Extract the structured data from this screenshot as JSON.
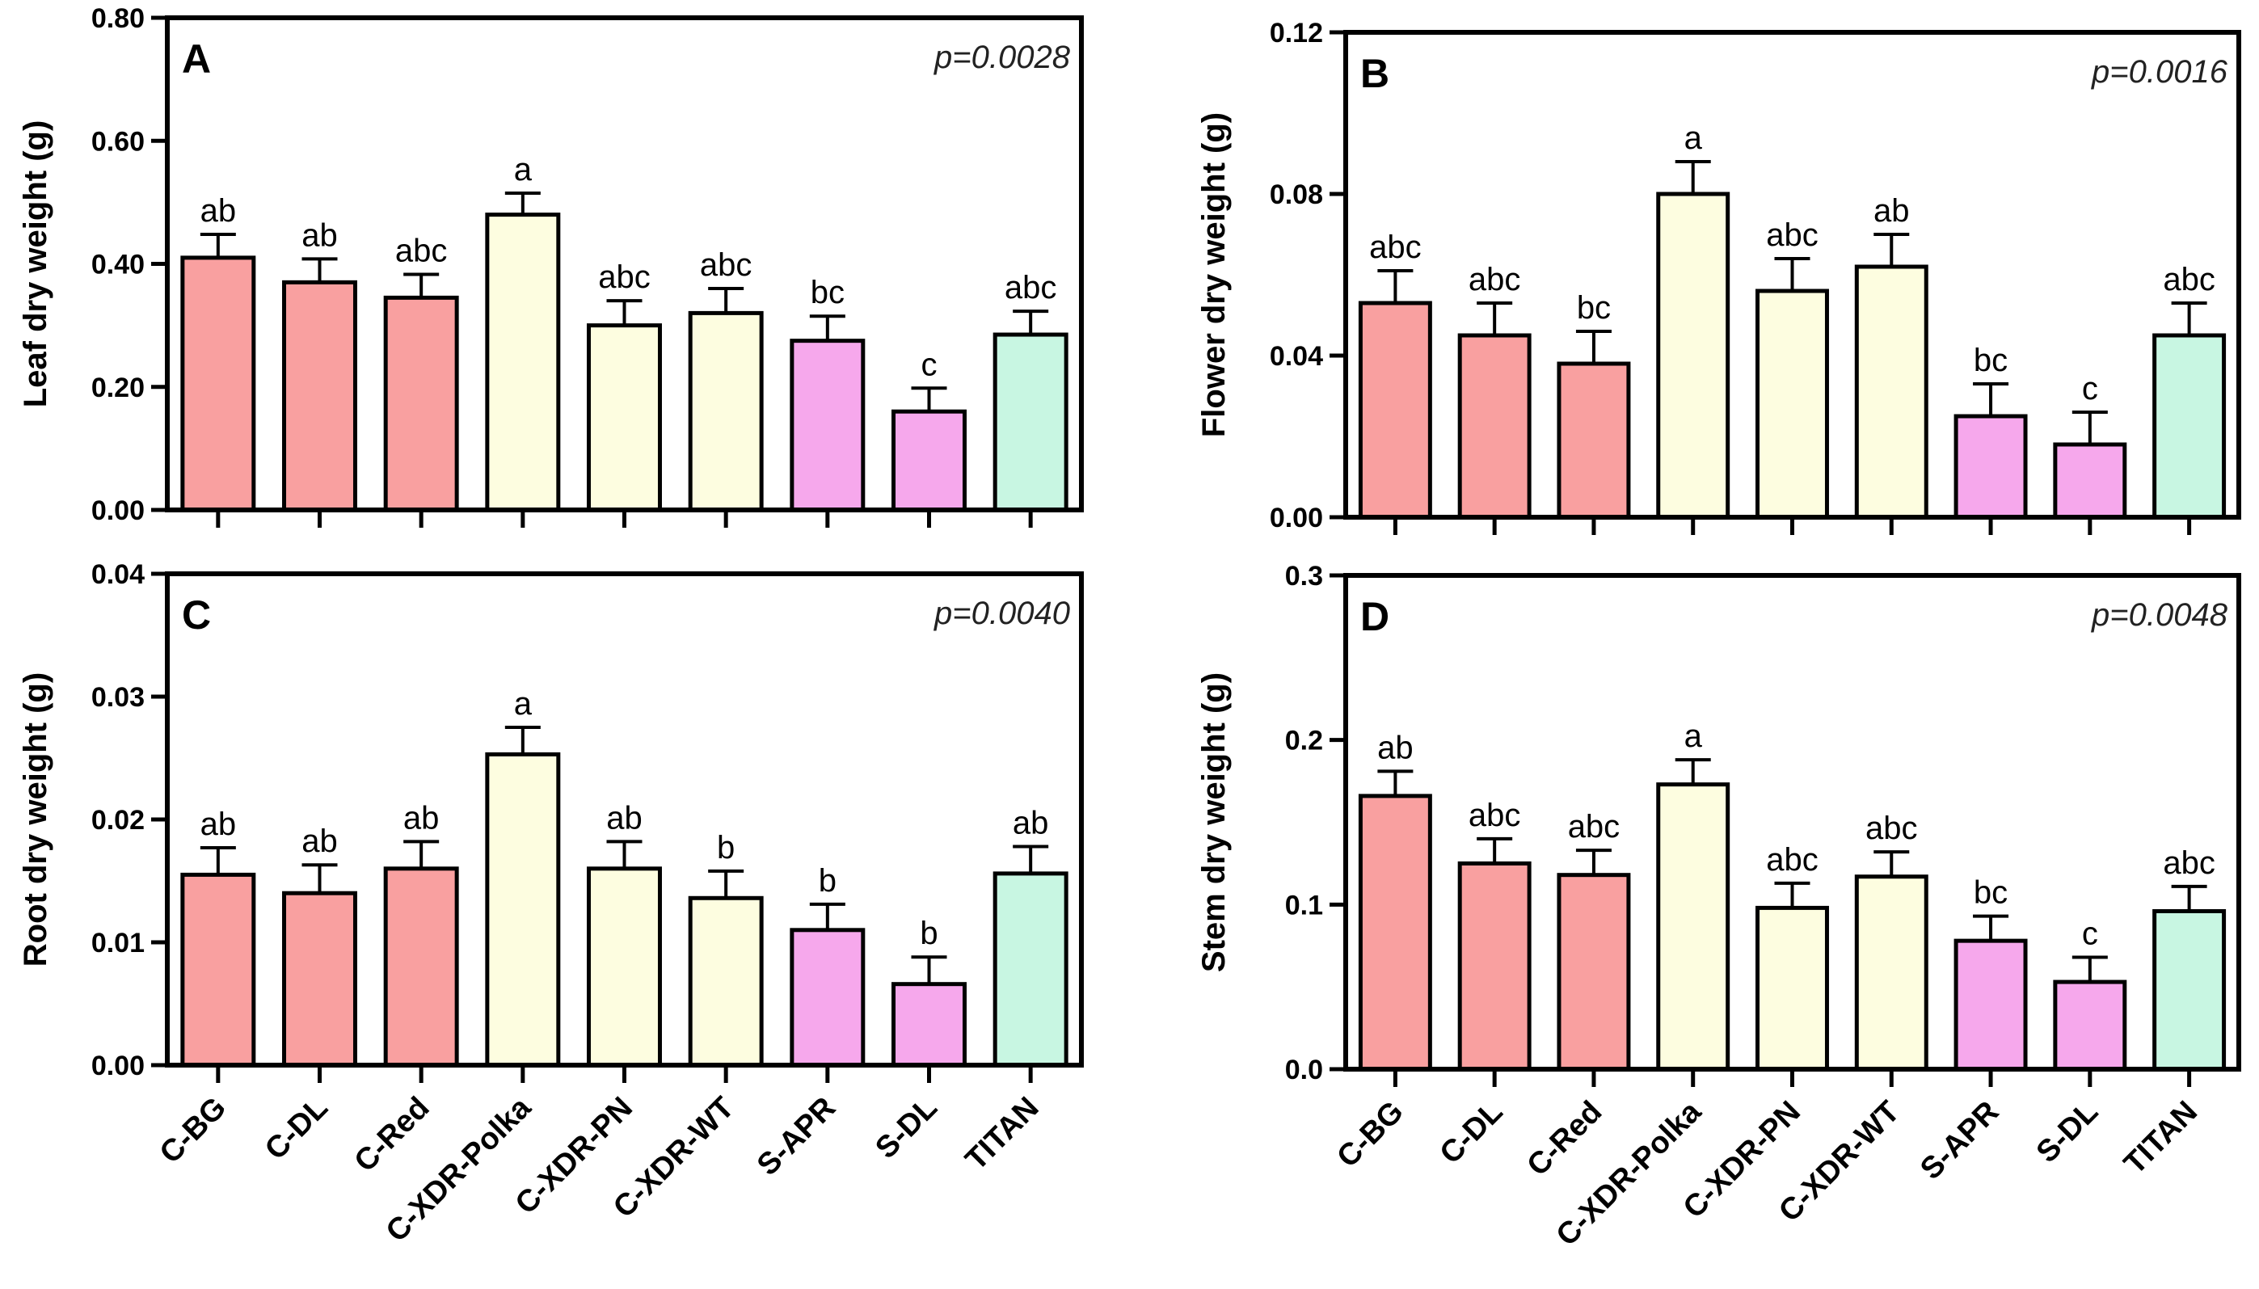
{
  "chart_data": [
    {
      "type": "bar",
      "panel": "A",
      "categories": [
        "C-BG",
        "C-DL",
        "C-Red",
        "C-XDR-Polka",
        "C-XDR-PN",
        "C-XDR-WT",
        "S-APR",
        "S-DL",
        "TITAN"
      ],
      "values": [
        0.41,
        0.37,
        0.345,
        0.48,
        0.3,
        0.32,
        0.275,
        0.16,
        0.285
      ],
      "errors": [
        0.038,
        0.038,
        0.038,
        0.035,
        0.04,
        0.04,
        0.04,
        0.038,
        0.038
      ],
      "significance": [
        "ab",
        "ab",
        "abc",
        "a",
        "abc",
        "abc",
        "bc",
        "c",
        "abc"
      ],
      "ylabel": "Leaf dry weight (g)",
      "ylim": [
        0,
        0.8
      ],
      "yticks": [
        0,
        0.2,
        0.4,
        0.6,
        0.8
      ],
      "ytick_labels": [
        "0.00",
        "0.20",
        "0.40",
        "0.60",
        "0.80"
      ],
      "annotation": "p=0.0028"
    },
    {
      "type": "bar",
      "panel": "B",
      "categories": [
        "C-BG",
        "C-DL",
        "C-Red",
        "C-XDR-Polka",
        "C-XDR-PN",
        "C-XDR-WT",
        "S-APR",
        "S-DL",
        "TITAN"
      ],
      "values": [
        0.053,
        0.045,
        0.038,
        0.08,
        0.056,
        0.062,
        0.025,
        0.018,
        0.045
      ],
      "errors": [
        0.008,
        0.008,
        0.008,
        0.008,
        0.008,
        0.008,
        0.008,
        0.008,
        0.008
      ],
      "significance": [
        "abc",
        "abc",
        "bc",
        "a",
        "abc",
        "ab",
        "bc",
        "c",
        "abc"
      ],
      "ylabel": "Flower dry weight (g)",
      "ylim": [
        0,
        0.12
      ],
      "yticks": [
        0,
        0.04,
        0.08,
        0.12
      ],
      "ytick_labels": [
        "0.00",
        "0.04",
        "0.08",
        "0.12"
      ],
      "annotation": "p=0.0016"
    },
    {
      "type": "bar",
      "panel": "C",
      "categories": [
        "C-BG",
        "C-DL",
        "C-Red",
        "C-XDR-Polka",
        "C-XDR-PN",
        "C-XDR-WT",
        "S-APR",
        "S-DL",
        "TITAN"
      ],
      "values": [
        0.0155,
        0.014,
        0.016,
        0.0253,
        0.016,
        0.0136,
        0.011,
        0.0066,
        0.0156
      ],
      "errors": [
        0.0022,
        0.0023,
        0.0022,
        0.0022,
        0.0022,
        0.0022,
        0.0021,
        0.0022,
        0.0022
      ],
      "significance": [
        "ab",
        "ab",
        "ab",
        "a",
        "ab",
        "b",
        "b",
        "b",
        "ab"
      ],
      "ylabel": "Root dry weight (g)",
      "ylim": [
        0,
        0.04
      ],
      "yticks": [
        0,
        0.01,
        0.02,
        0.03,
        0.04
      ],
      "ytick_labels": [
        "0.00",
        "0.01",
        "0.02",
        "0.03",
        "0.04"
      ],
      "annotation": "p=0.0040"
    },
    {
      "type": "bar",
      "panel": "D",
      "categories": [
        "C-BG",
        "C-DL",
        "C-Red",
        "C-XDR-Polka",
        "C-XDR-PN",
        "C-XDR-WT",
        "S-APR",
        "S-DL",
        "TITAN"
      ],
      "values": [
        0.166,
        0.125,
        0.118,
        0.173,
        0.098,
        0.117,
        0.078,
        0.053,
        0.096
      ],
      "errors": [
        0.015,
        0.015,
        0.015,
        0.015,
        0.015,
        0.015,
        0.015,
        0.015,
        0.015
      ],
      "significance": [
        "ab",
        "abc",
        "abc",
        "a",
        "abc",
        "abc",
        "bc",
        "c",
        "abc"
      ],
      "ylabel": "Stem dry weight (g)",
      "ylim": [
        0,
        0.3
      ],
      "yticks": [
        0,
        0.1,
        0.2,
        0.3
      ],
      "ytick_labels": [
        "0.0",
        "0.1",
        "0.2",
        "0.3"
      ],
      "annotation": "p=0.0048"
    }
  ],
  "colors": {
    "C-BG": "#f9a0a0",
    "C-DL": "#f9a0a0",
    "C-Red": "#f9a0a0",
    "C-XDR-Polka": "#fdfde0",
    "C-XDR-PN": "#fdfde0",
    "C-XDR-WT": "#fdfde0",
    "S-APR": "#f6a8ec",
    "S-DL": "#f6a8ec",
    "TITAN": "#c8f6e2"
  },
  "x_category_labels": [
    "C-BG",
    "C-DL",
    "C-Red",
    "C-XDR-Polka",
    "C-XDR-PN",
    "C-XDR-WT",
    "S-APR",
    "S-DL",
    "TITAN"
  ]
}
